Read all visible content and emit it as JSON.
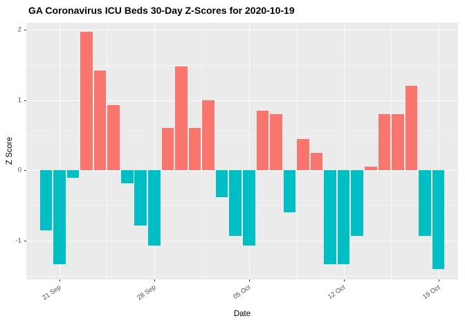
{
  "chart_data": {
    "type": "bar",
    "title": "GA Coronavirus ICU Beds 30-Day Z-Scores for 2020-10-19",
    "xlabel": "Date",
    "ylabel": "Z Score",
    "ylim": [
      -1.55,
      2.1
    ],
    "legend": "none",
    "grid": {
      "major_y": [
        -1,
        0,
        1,
        2
      ],
      "minor_y": [
        -1.5,
        -0.5,
        0.5,
        1.5
      ],
      "minor_x_days": [
        4.5,
        11.5,
        18.5,
        25.5
      ]
    },
    "y_ticks": [
      {
        "label": "2",
        "value": 2
      },
      {
        "label": "1",
        "value": 1
      },
      {
        "label": "0",
        "value": 0
      },
      {
        "label": "-1",
        "value": -1
      }
    ],
    "x_ticks": [
      {
        "label": "21 Sep",
        "day": 1
      },
      {
        "label": "28 Sep",
        "day": 8
      },
      {
        "label": "05 Oct",
        "day": 15
      },
      {
        "label": "12 Oct",
        "day": 22
      },
      {
        "label": "19 Oct",
        "day": 29
      }
    ],
    "colors": {
      "positive": "#F8766D",
      "negative": "#00BFC4",
      "panel": "#EBEBEB",
      "gridline": "#FFFFFF"
    },
    "bars": [
      {
        "date": "2020-09-20",
        "z": -0.85
      },
      {
        "date": "2020-09-21",
        "z": -1.33
      },
      {
        "date": "2020-09-22",
        "z": -0.1
      },
      {
        "date": "2020-09-23",
        "z": 1.97
      },
      {
        "date": "2020-09-24",
        "z": 1.42
      },
      {
        "date": "2020-09-25",
        "z": 0.93
      },
      {
        "date": "2020-09-26",
        "z": -0.18
      },
      {
        "date": "2020-09-27",
        "z": -0.78
      },
      {
        "date": "2020-09-28",
        "z": -1.07
      },
      {
        "date": "2020-09-29",
        "z": 0.6
      },
      {
        "date": "2020-09-30",
        "z": 1.48
      },
      {
        "date": "2020-10-01",
        "z": 0.6
      },
      {
        "date": "2020-10-02",
        "z": 1.0
      },
      {
        "date": "2020-10-03",
        "z": -0.38
      },
      {
        "date": "2020-10-04",
        "z": -0.93
      },
      {
        "date": "2020-10-05",
        "z": -1.07
      },
      {
        "date": "2020-10-06",
        "z": 0.85
      },
      {
        "date": "2020-10-07",
        "z": 0.8
      },
      {
        "date": "2020-10-08",
        "z": -0.6
      },
      {
        "date": "2020-10-09",
        "z": 0.45
      },
      {
        "date": "2020-10-10",
        "z": 0.25
      },
      {
        "date": "2020-10-11",
        "z": -1.33
      },
      {
        "date": "2020-10-12",
        "z": -1.33
      },
      {
        "date": "2020-10-13",
        "z": -0.93
      },
      {
        "date": "2020-10-14",
        "z": 0.05
      },
      {
        "date": "2020-10-15",
        "z": 0.8
      },
      {
        "date": "2020-10-16",
        "z": 0.8
      },
      {
        "date": "2020-10-17",
        "z": 1.2
      },
      {
        "date": "2020-10-18",
        "z": -0.93
      },
      {
        "date": "2020-10-19",
        "z": -1.4
      }
    ]
  }
}
